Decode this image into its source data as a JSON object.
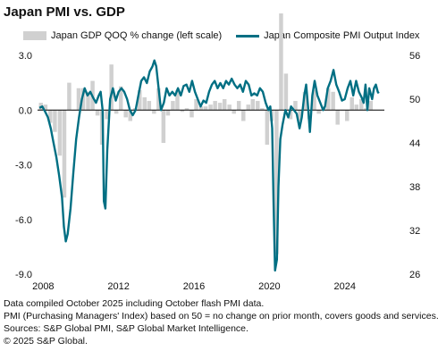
{
  "title": "Japan PMI vs. GDP",
  "legend": {
    "bars": "Japan GDP QOQ % change (left scale)",
    "line": "Japan Composite PMI Output Index"
  },
  "notes": [
    "Data compiled October 2025 including October flash PMI data.",
    "PMI (Purchasing Managers' Index) based on 50 = no change on prior month, covers goods and services.",
    "Sources: S&P Global PMI, S&P Global Market Intelligence.",
    "© 2025 S&P Global."
  ],
  "colors": {
    "bars": "#d0d0d0",
    "line": "#006f83",
    "zero": "#000000"
  },
  "chart_data": {
    "type": "bar+line",
    "x_ticks": [
      "2008",
      "2012",
      "2016",
      "2020",
      "2024"
    ],
    "left_axis": {
      "ticks": [
        "3.0",
        "0.0",
        "-3.0",
        "-6.0",
        "-9.0"
      ],
      "range": [
        -9,
        3
      ]
    },
    "right_axis": {
      "ticks": [
        "56",
        "50",
        "44",
        "38",
        "32",
        "26"
      ],
      "range": [
        26,
        56
      ]
    },
    "gdp_qoq": [
      {
        "x": 2007.88,
        "y": 0.4
      },
      {
        "x": 2008.12,
        "y": 0.3
      },
      {
        "x": 2008.38,
        "y": -0.7
      },
      {
        "x": 2008.62,
        "y": -1.2
      },
      {
        "x": 2008.88,
        "y": -2.5
      },
      {
        "x": 2009.12,
        "y": -4.8
      },
      {
        "x": 2009.38,
        "y": 1.5
      },
      {
        "x": 2009.62,
        "y": 0.0
      },
      {
        "x": 2009.88,
        "y": 1.2
      },
      {
        "x": 2010.12,
        "y": 1.2
      },
      {
        "x": 2010.38,
        "y": 1.0
      },
      {
        "x": 2010.62,
        "y": 1.6
      },
      {
        "x": 2010.88,
        "y": -0.3
      },
      {
        "x": 2011.12,
        "y": -1.9
      },
      {
        "x": 2011.38,
        "y": -0.5
      },
      {
        "x": 2011.62,
        "y": 2.5
      },
      {
        "x": 2011.88,
        "y": -0.2
      },
      {
        "x": 2012.12,
        "y": 1.3
      },
      {
        "x": 2012.38,
        "y": -0.4
      },
      {
        "x": 2012.62,
        "y": -0.6
      },
      {
        "x": 2012.88,
        "y": 0.1
      },
      {
        "x": 2013.12,
        "y": 1.1
      },
      {
        "x": 2013.38,
        "y": 0.7
      },
      {
        "x": 2013.62,
        "y": 0.5
      },
      {
        "x": 2013.88,
        "y": -0.2
      },
      {
        "x": 2014.12,
        "y": 1.2
      },
      {
        "x": 2014.38,
        "y": -1.8
      },
      {
        "x": 2014.62,
        "y": -0.3
      },
      {
        "x": 2014.88,
        "y": 0.5
      },
      {
        "x": 2015.12,
        "y": 1.1
      },
      {
        "x": 2015.38,
        "y": -0.1
      },
      {
        "x": 2015.62,
        "y": 0.1
      },
      {
        "x": 2015.88,
        "y": -0.4
      },
      {
        "x": 2016.12,
        "y": 0.6
      },
      {
        "x": 2016.38,
        "y": 0.2
      },
      {
        "x": 2016.62,
        "y": 0.2
      },
      {
        "x": 2016.88,
        "y": 0.3
      },
      {
        "x": 2017.12,
        "y": 0.5
      },
      {
        "x": 2017.38,
        "y": 0.4
      },
      {
        "x": 2017.62,
        "y": 0.6
      },
      {
        "x": 2017.88,
        "y": 0.3
      },
      {
        "x": 2018.12,
        "y": -0.2
      },
      {
        "x": 2018.38,
        "y": 0.5
      },
      {
        "x": 2018.62,
        "y": -0.6
      },
      {
        "x": 2018.88,
        "y": 0.3
      },
      {
        "x": 2019.12,
        "y": 0.6
      },
      {
        "x": 2019.38,
        "y": 0.5
      },
      {
        "x": 2019.62,
        "y": 0.1
      },
      {
        "x": 2019.88,
        "y": -1.9
      },
      {
        "x": 2020.12,
        "y": -0.6
      },
      {
        "x": 2020.38,
        "y": -7.9
      },
      {
        "x": 2020.62,
        "y": 5.3
      },
      {
        "x": 2020.88,
        "y": 2.0
      },
      {
        "x": 2021.12,
        "y": -0.5
      },
      {
        "x": 2021.38,
        "y": 0.5
      },
      {
        "x": 2021.62,
        "y": -0.6
      },
      {
        "x": 2021.88,
        "y": 1.0
      },
      {
        "x": 2022.12,
        "y": -0.5
      },
      {
        "x": 2022.38,
        "y": 1.1
      },
      {
        "x": 2022.62,
        "y": -0.2
      },
      {
        "x": 2022.88,
        "y": 0.2
      },
      {
        "x": 2023.12,
        "y": 1.2
      },
      {
        "x": 2023.38,
        "y": 1.0
      },
      {
        "x": 2023.62,
        "y": -0.8
      },
      {
        "x": 2023.88,
        "y": 0.0
      },
      {
        "x": 2024.12,
        "y": -0.6
      },
      {
        "x": 2024.38,
        "y": 0.7
      },
      {
        "x": 2024.62,
        "y": 0.3
      },
      {
        "x": 2024.88,
        "y": 0.6
      },
      {
        "x": 2025.12,
        "y": 0.1
      },
      {
        "x": 2025.38,
        "y": 0.5
      }
    ],
    "composite_pmi": [
      {
        "x": 2007.8,
        "y": 48.8
      },
      {
        "x": 2007.95,
        "y": 49.0
      },
      {
        "x": 2008.1,
        "y": 48.3
      },
      {
        "x": 2008.25,
        "y": 47.5
      },
      {
        "x": 2008.4,
        "y": 46.0
      },
      {
        "x": 2008.55,
        "y": 44.0
      },
      {
        "x": 2008.7,
        "y": 42.0
      },
      {
        "x": 2008.85,
        "y": 39.5
      },
      {
        "x": 2009.0,
        "y": 36.5
      },
      {
        "x": 2009.1,
        "y": 32.5
      },
      {
        "x": 2009.2,
        "y": 30.5
      },
      {
        "x": 2009.3,
        "y": 31.5
      },
      {
        "x": 2009.45,
        "y": 35.0
      },
      {
        "x": 2009.6,
        "y": 40.0
      },
      {
        "x": 2009.75,
        "y": 44.5
      },
      {
        "x": 2009.9,
        "y": 47.5
      },
      {
        "x": 2010.05,
        "y": 50.0
      },
      {
        "x": 2010.2,
        "y": 51.5
      },
      {
        "x": 2010.35,
        "y": 50.5
      },
      {
        "x": 2010.5,
        "y": 51.0
      },
      {
        "x": 2010.65,
        "y": 50.2
      },
      {
        "x": 2010.8,
        "y": 49.5
      },
      {
        "x": 2010.95,
        "y": 50.5
      },
      {
        "x": 2011.05,
        "y": 51.0
      },
      {
        "x": 2011.15,
        "y": 48.5
      },
      {
        "x": 2011.22,
        "y": 36.0
      },
      {
        "x": 2011.3,
        "y": 35.0
      },
      {
        "x": 2011.4,
        "y": 43.0
      },
      {
        "x": 2011.55,
        "y": 50.0
      },
      {
        "x": 2011.7,
        "y": 51.5
      },
      {
        "x": 2011.85,
        "y": 49.8
      },
      {
        "x": 2012.0,
        "y": 51.0
      },
      {
        "x": 2012.15,
        "y": 51.5
      },
      {
        "x": 2012.3,
        "y": 51.0
      },
      {
        "x": 2012.45,
        "y": 50.0
      },
      {
        "x": 2012.6,
        "y": 48.5
      },
      {
        "x": 2012.75,
        "y": 47.8
      },
      {
        "x": 2012.9,
        "y": 48.5
      },
      {
        "x": 2013.05,
        "y": 50.5
      },
      {
        "x": 2013.2,
        "y": 52.5
      },
      {
        "x": 2013.35,
        "y": 53.0
      },
      {
        "x": 2013.5,
        "y": 52.2
      },
      {
        "x": 2013.65,
        "y": 53.8
      },
      {
        "x": 2013.8,
        "y": 54.5
      },
      {
        "x": 2013.9,
        "y": 55.3
      },
      {
        "x": 2014.0,
        "y": 54.5
      },
      {
        "x": 2014.1,
        "y": 52.0
      },
      {
        "x": 2014.25,
        "y": 48.5
      },
      {
        "x": 2014.4,
        "y": 49.5
      },
      {
        "x": 2014.55,
        "y": 51.5
      },
      {
        "x": 2014.7,
        "y": 50.5
      },
      {
        "x": 2014.85,
        "y": 51.0
      },
      {
        "x": 2015.0,
        "y": 50.5
      },
      {
        "x": 2015.15,
        "y": 51.5
      },
      {
        "x": 2015.3,
        "y": 50.5
      },
      {
        "x": 2015.45,
        "y": 51.8
      },
      {
        "x": 2015.6,
        "y": 52.0
      },
      {
        "x": 2015.75,
        "y": 51.0
      },
      {
        "x": 2015.9,
        "y": 52.5
      },
      {
        "x": 2016.05,
        "y": 51.0
      },
      {
        "x": 2016.2,
        "y": 50.0
      },
      {
        "x": 2016.35,
        "y": 49.0
      },
      {
        "x": 2016.5,
        "y": 49.8
      },
      {
        "x": 2016.65,
        "y": 49.5
      },
      {
        "x": 2016.8,
        "y": 51.0
      },
      {
        "x": 2016.95,
        "y": 52.0
      },
      {
        "x": 2017.1,
        "y": 52.5
      },
      {
        "x": 2017.25,
        "y": 51.5
      },
      {
        "x": 2017.4,
        "y": 52.2
      },
      {
        "x": 2017.55,
        "y": 51.5
      },
      {
        "x": 2017.7,
        "y": 52.5
      },
      {
        "x": 2017.85,
        "y": 52.0
      },
      {
        "x": 2018.0,
        "y": 52.8
      },
      {
        "x": 2018.15,
        "y": 52.0
      },
      {
        "x": 2018.3,
        "y": 51.5
      },
      {
        "x": 2018.45,
        "y": 52.0
      },
      {
        "x": 2018.6,
        "y": 51.0
      },
      {
        "x": 2018.75,
        "y": 52.5
      },
      {
        "x": 2018.9,
        "y": 52.0
      },
      {
        "x": 2019.05,
        "y": 50.5
      },
      {
        "x": 2019.2,
        "y": 50.8
      },
      {
        "x": 2019.35,
        "y": 50.5
      },
      {
        "x": 2019.5,
        "y": 51.5
      },
      {
        "x": 2019.65,
        "y": 51.0
      },
      {
        "x": 2019.8,
        "y": 49.5
      },
      {
        "x": 2019.95,
        "y": 48.5
      },
      {
        "x": 2020.05,
        "y": 49.0
      },
      {
        "x": 2020.15,
        "y": 46.0
      },
      {
        "x": 2020.22,
        "y": 36.0
      },
      {
        "x": 2020.3,
        "y": 26.5
      },
      {
        "x": 2020.4,
        "y": 28.0
      },
      {
        "x": 2020.48,
        "y": 38.0
      },
      {
        "x": 2020.58,
        "y": 44.5
      },
      {
        "x": 2020.7,
        "y": 46.5
      },
      {
        "x": 2020.85,
        "y": 48.5
      },
      {
        "x": 2021.0,
        "y": 47.5
      },
      {
        "x": 2021.15,
        "y": 49.0
      },
      {
        "x": 2021.3,
        "y": 48.5
      },
      {
        "x": 2021.45,
        "y": 48.0
      },
      {
        "x": 2021.6,
        "y": 46.0
      },
      {
        "x": 2021.72,
        "y": 47.5
      },
      {
        "x": 2021.85,
        "y": 50.5
      },
      {
        "x": 2021.95,
        "y": 52.0
      },
      {
        "x": 2022.05,
        "y": 49.0
      },
      {
        "x": 2022.15,
        "y": 45.5
      },
      {
        "x": 2022.28,
        "y": 50.5
      },
      {
        "x": 2022.4,
        "y": 52.5
      },
      {
        "x": 2022.55,
        "y": 50.5
      },
      {
        "x": 2022.7,
        "y": 49.5
      },
      {
        "x": 2022.85,
        "y": 48.5
      },
      {
        "x": 2022.95,
        "y": 49.0
      },
      {
        "x": 2023.1,
        "y": 51.5
      },
      {
        "x": 2023.25,
        "y": 52.5
      },
      {
        "x": 2023.4,
        "y": 54.0
      },
      {
        "x": 2023.55,
        "y": 52.0
      },
      {
        "x": 2023.7,
        "y": 51.0
      },
      {
        "x": 2023.85,
        "y": 49.8
      },
      {
        "x": 2024.0,
        "y": 50.0
      },
      {
        "x": 2024.15,
        "y": 51.5
      },
      {
        "x": 2024.3,
        "y": 52.5
      },
      {
        "x": 2024.45,
        "y": 50.5
      },
      {
        "x": 2024.6,
        "y": 52.5
      },
      {
        "x": 2024.75,
        "y": 51.0
      },
      {
        "x": 2024.9,
        "y": 50.2
      },
      {
        "x": 2025.0,
        "y": 49.5
      },
      {
        "x": 2025.1,
        "y": 52.0
      },
      {
        "x": 2025.2,
        "y": 48.5
      },
      {
        "x": 2025.3,
        "y": 51.5
      },
      {
        "x": 2025.45,
        "y": 50.0
      },
      {
        "x": 2025.55,
        "y": 51.5
      },
      {
        "x": 2025.65,
        "y": 52.0
      },
      {
        "x": 2025.75,
        "y": 51.0
      },
      {
        "x": 2025.8,
        "y": 50.8
      }
    ]
  }
}
